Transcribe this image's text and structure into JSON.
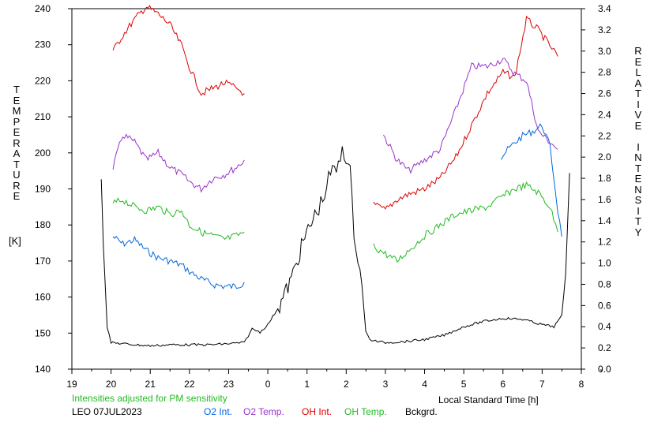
{
  "chart_data": {
    "type": "line",
    "left_axis_label": "TEMPERATURE",
    "left_axis_unit": "[K]",
    "right_axis_label": "RELATIVE INTENSITY",
    "xlabel": "Local Standard Time [h]",
    "x_ticks": [
      "19",
      "20",
      "21",
      "22",
      "23",
      "0",
      "1",
      "2",
      "3",
      "4",
      "5",
      "6",
      "7",
      "8"
    ],
    "xlim": [
      19,
      32
    ],
    "y_left_ticks": [
      "140",
      "150",
      "160",
      "170",
      "180",
      "190",
      "200",
      "210",
      "220",
      "230",
      "240"
    ],
    "ylim_left": [
      140,
      240
    ],
    "y_right_ticks": [
      "0.0",
      "0.2",
      "0.4",
      "0.6",
      "0.8",
      "1.0",
      "1.2",
      "1.4",
      "1.6",
      "1.8",
      "2.0",
      "2.2",
      "2.4",
      "2.6",
      "2.8",
      "3.0",
      "3.2",
      "3.4"
    ],
    "ylim_right": [
      0.0,
      3.4
    ],
    "grid": false,
    "note": "Intensities adjusted for PM sensitivity",
    "station": "LEO 07JUL2023",
    "legend_position": "bottom",
    "series": [
      {
        "name": "O2 Int.",
        "color": "#0066dd",
        "axis": "right",
        "segments": [
          {
            "x": [
              20.05,
              20.3,
              20.6,
              20.9,
              21.2,
              21.5,
              21.8,
              22.0,
              22.3,
              22.6,
              22.9,
              23.2,
              23.4
            ],
            "y": [
              1.25,
              1.18,
              1.22,
              1.12,
              1.05,
              1.02,
              0.98,
              0.92,
              0.85,
              0.8,
              0.78,
              0.78,
              0.82
            ]
          },
          {
            "x": [
              29.95,
              30.2,
              30.5,
              30.8,
              31.0,
              31.2,
              31.4,
              31.5
            ],
            "y": [
              2.0,
              2.1,
              2.2,
              2.25,
              2.3,
              2.1,
              1.5,
              1.25
            ]
          }
        ]
      },
      {
        "name": "O2 Temp.",
        "color": "#9933cc",
        "axis": "left",
        "segments": [
          {
            "x": [
              20.05,
              20.3,
              20.6,
              20.9,
              21.2,
              21.5,
              21.8,
              22.0,
              22.3,
              22.6,
              22.9,
              23.2,
              23.4
            ],
            "y": [
              196,
              205,
              203,
              198,
              200,
              196,
              194,
              192,
              190,
              193,
              194,
              196,
              198
            ]
          },
          {
            "x": [
              26.95,
              27.3,
              27.6,
              28.0,
              28.4,
              28.8,
              29.2,
              29.6,
              30.0,
              30.3,
              30.6,
              30.9,
              31.2,
              31.4
            ],
            "y": [
              205,
              198,
              195,
              198,
              201,
              212,
              224,
              224,
              226,
              222,
              220,
              206,
              203,
              201
            ]
          }
        ]
      },
      {
        "name": "OH Int.",
        "color": "#dd0000",
        "axis": "right",
        "segments": [
          {
            "x": [
              20.05,
              20.3,
              20.6,
              20.9,
              21.2,
              21.5,
              21.8,
              22.0,
              22.3,
              22.6,
              22.9,
              23.2,
              23.4
            ],
            "y": [
              3.0,
              3.15,
              3.3,
              3.42,
              3.35,
              3.25,
              3.05,
              2.85,
              2.6,
              2.65,
              2.7,
              2.65,
              2.6
            ]
          },
          {
            "x": [
              26.7,
              27.0,
              27.3,
              27.6,
              28.0,
              28.4,
              28.8,
              29.2,
              29.6,
              30.0,
              30.3,
              30.6,
              30.9,
              31.2,
              31.4
            ],
            "y": [
              1.55,
              1.5,
              1.6,
              1.65,
              1.7,
              1.8,
              2.0,
              2.3,
              2.6,
              2.8,
              2.75,
              3.3,
              3.2,
              3.05,
              2.95
            ]
          }
        ]
      },
      {
        "name": "OH Temp.",
        "color": "#22bb22",
        "axis": "left",
        "segments": [
          {
            "x": [
              20.05,
              20.3,
              20.6,
              20.9,
              21.2,
              21.5,
              21.8,
              22.0,
              22.3,
              22.6,
              22.9,
              23.2,
              23.4
            ],
            "y": [
              186,
              187,
              185,
              184,
              185,
              183,
              184,
              180,
              178,
              177,
              176,
              177,
              178
            ]
          },
          {
            "x": [
              26.7,
              27.0,
              27.3,
              27.6,
              28.0,
              28.4,
              28.8,
              29.2,
              29.6,
              30.0,
              30.3,
              30.6,
              30.9,
              31.2,
              31.4
            ],
            "y": [
              174,
              172,
              170,
              173,
              177,
              180,
              183,
              184,
              185,
              188,
              190,
              191,
              189,
              185,
              178
            ]
          }
        ]
      },
      {
        "name": "Bckgrd.",
        "color": "#000000",
        "axis": "right",
        "segments": [
          {
            "x": [
              19.75,
              19.8,
              19.9,
              20.0,
              20.3,
              20.6,
              21.0,
              21.5,
              22.0,
              22.5,
              23.0,
              23.4,
              23.6,
              23.8,
              24.0,
              24.3,
              24.6,
              24.9,
              25.2,
              25.4,
              25.6,
              25.8,
              25.9,
              26.0,
              26.1,
              26.2,
              26.4,
              26.5,
              26.6,
              26.8,
              27.0,
              27.5,
              28.0,
              28.5,
              29.0,
              29.5,
              30.0,
              30.5,
              31.0,
              31.3,
              31.5,
              31.6,
              31.7
            ],
            "y": [
              1.8,
              1.2,
              0.4,
              0.25,
              0.24,
              0.23,
              0.22,
              0.23,
              0.23,
              0.23,
              0.24,
              0.25,
              0.38,
              0.35,
              0.42,
              0.6,
              0.85,
              1.2,
              1.45,
              1.6,
              1.85,
              1.9,
              2.1,
              2.0,
              1.85,
              1.3,
              0.8,
              0.35,
              0.28,
              0.26,
              0.25,
              0.26,
              0.28,
              0.32,
              0.4,
              0.45,
              0.48,
              0.47,
              0.42,
              0.4,
              0.5,
              0.9,
              1.85
            ]
          }
        ]
      }
    ]
  }
}
